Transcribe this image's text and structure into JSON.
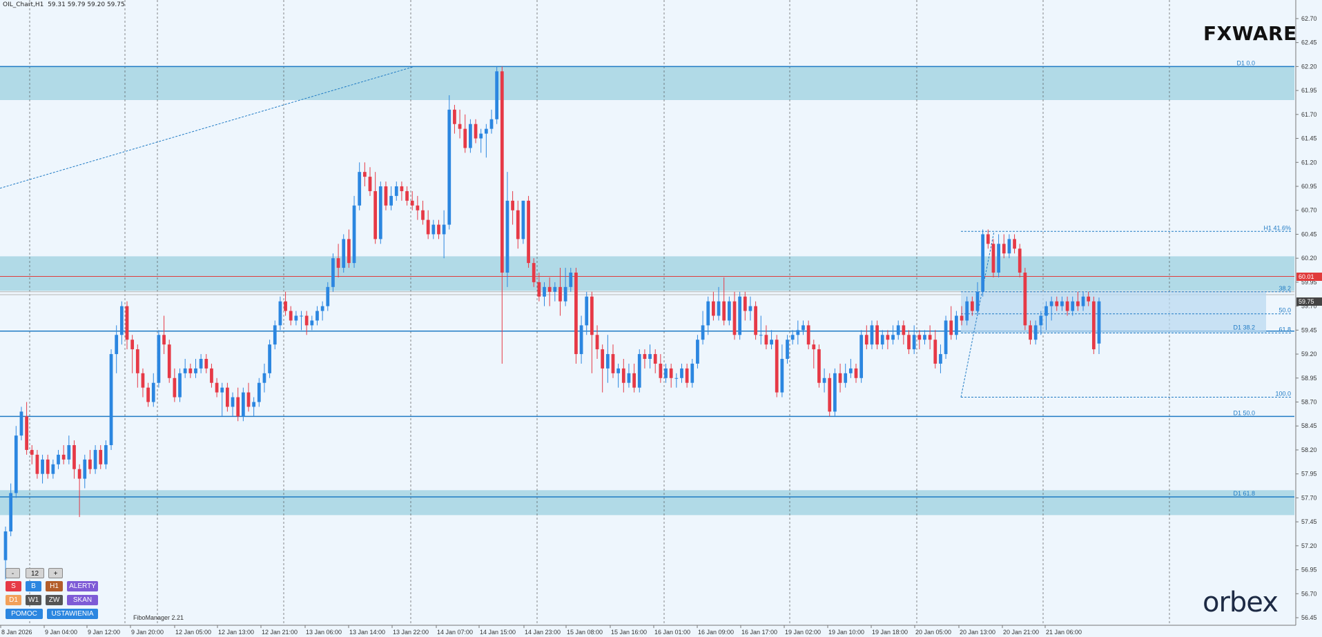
{
  "header": {
    "symbol": "OIL_Chart,H1",
    "ohlc": "59.31 59.79 59.20 59.75"
  },
  "branding": {
    "fx_logo": "FXWARE",
    "orbex_logo": "orbex"
  },
  "colors": {
    "bull": "#2b86e0",
    "bear": "#e63946",
    "zone": "#add8e6",
    "level": "#1f7ac4",
    "red_line": "#e03b3b",
    "grid": "#555555"
  },
  "chart_data": {
    "type": "candlestick",
    "ylim": [
      56.45,
      62.75
    ],
    "y_ticks": [
      "62.70",
      "62.45",
      "62.20",
      "61.95",
      "61.70",
      "61.45",
      "61.20",
      "60.95",
      "60.70",
      "60.45",
      "60.20",
      "59.95",
      "59.70",
      "59.45",
      "59.20",
      "58.95",
      "58.70",
      "58.45",
      "58.20",
      "57.95",
      "57.70",
      "57.45",
      "57.20",
      "56.95",
      "56.70",
      "56.45"
    ],
    "x_labels": [
      "8 Jan 2026",
      "9 Jan 04:00",
      "9 Jan 12:00",
      "9 Jan 20:00",
      "12 Jan 05:00",
      "12 Jan 13:00",
      "12 Jan 21:00",
      "13 Jan 06:00",
      "13 Jan 14:00",
      "13 Jan 22:00",
      "14 Jan 07:00",
      "14 Jan 15:00",
      "14 Jan 23:00",
      "15 Jan 08:00",
      "15 Jan 16:00",
      "16 Jan 01:00",
      "16 Jan 09:00",
      "16 Jan 17:00",
      "19 Jan 02:00",
      "19 Jan 10:00",
      "19 Jan 18:00",
      "20 Jan 05:00",
      "20 Jan 13:00",
      "20 Jan 21:00",
      "21 Jan 06:00"
    ],
    "candles": [
      [
        57.05,
        57.35,
        56.85,
        57.4
      ],
      [
        57.35,
        57.75,
        57.3,
        57.85
      ],
      [
        57.75,
        58.35,
        57.7,
        58.45
      ],
      [
        58.35,
        58.6,
        58.3,
        58.65
      ],
      [
        58.55,
        58.2,
        58.15,
        58.7
      ],
      [
        58.2,
        58.15,
        58.05,
        58.25
      ],
      [
        58.15,
        57.95,
        57.9,
        58.2
      ],
      [
        57.95,
        58.1,
        57.85,
        58.15
      ],
      [
        58.1,
        57.95,
        57.9,
        58.15
      ],
      [
        57.95,
        58.05,
        57.9,
        58.1
      ],
      [
        58.05,
        58.15,
        58.0,
        58.2
      ],
      [
        58.15,
        58.1,
        58.05,
        58.25
      ],
      [
        58.1,
        58.25,
        58.05,
        58.35
      ],
      [
        58.25,
        58.0,
        57.9,
        58.3
      ],
      [
        58.0,
        57.9,
        57.5,
        58.05
      ],
      [
        57.9,
        58.1,
        57.8,
        58.15
      ],
      [
        58.1,
        58.0,
        57.95,
        58.2
      ],
      [
        58.0,
        58.2,
        57.95,
        58.25
      ],
      [
        58.2,
        58.05,
        58.0,
        58.25
      ],
      [
        58.05,
        58.25,
        58.0,
        58.3
      ],
      [
        58.25,
        59.2,
        58.2,
        59.25
      ],
      [
        59.2,
        59.4,
        59.0,
        59.5
      ],
      [
        59.4,
        59.7,
        59.3,
        59.75
      ],
      [
        59.7,
        59.35,
        59.25,
        59.75
      ],
      [
        59.35,
        59.25,
        59.0,
        59.4
      ],
      [
        59.25,
        59.0,
        58.85,
        59.3
      ],
      [
        59.0,
        58.85,
        58.75,
        59.05
      ],
      [
        58.85,
        58.7,
        58.65,
        58.9
      ],
      [
        58.7,
        58.9,
        58.65,
        59.0
      ],
      [
        58.9,
        59.4,
        58.85,
        59.45
      ],
      [
        59.4,
        59.3,
        59.2,
        59.6
      ],
      [
        59.3,
        58.95,
        58.9,
        59.35
      ],
      [
        58.95,
        58.75,
        58.7,
        59.05
      ],
      [
        58.75,
        59.0,
        58.7,
        59.05
      ],
      [
        59.0,
        59.05,
        58.95,
        59.15
      ],
      [
        59.05,
        59.0,
        58.95,
        59.1
      ],
      [
        59.0,
        59.05,
        58.95,
        59.15
      ],
      [
        59.05,
        59.15,
        59.0,
        59.2
      ],
      [
        59.15,
        59.05,
        59.0,
        59.2
      ],
      [
        59.05,
        58.9,
        58.85,
        59.1
      ],
      [
        58.9,
        58.8,
        58.75,
        58.95
      ],
      [
        58.8,
        58.85,
        58.55,
        58.9
      ],
      [
        58.85,
        58.65,
        58.6,
        58.9
      ],
      [
        58.65,
        58.75,
        58.55,
        58.8
      ],
      [
        58.75,
        58.55,
        58.5,
        58.85
      ],
      [
        58.55,
        58.8,
        58.5,
        58.85
      ],
      [
        58.8,
        58.65,
        58.6,
        58.9
      ],
      [
        58.65,
        58.7,
        58.55,
        58.75
      ],
      [
        58.7,
        58.9,
        58.65,
        58.95
      ],
      [
        58.9,
        59.0,
        58.8,
        59.1
      ],
      [
        59.0,
        59.3,
        58.95,
        59.35
      ],
      [
        59.3,
        59.5,
        59.25,
        59.55
      ],
      [
        59.5,
        59.75,
        59.45,
        59.8
      ],
      [
        59.75,
        59.65,
        59.6,
        59.85
      ],
      [
        59.65,
        59.55,
        59.5,
        59.7
      ],
      [
        59.55,
        59.6,
        59.5,
        59.65
      ],
      [
        59.6,
        59.6,
        59.45,
        59.65
      ],
      [
        59.6,
        59.5,
        59.4,
        59.65
      ],
      [
        59.5,
        59.55,
        59.45,
        59.6
      ],
      [
        59.55,
        59.65,
        59.5,
        59.7
      ],
      [
        59.65,
        59.7,
        59.55,
        59.75
      ],
      [
        59.7,
        59.9,
        59.65,
        59.95
      ],
      [
        59.9,
        60.2,
        59.85,
        60.25
      ],
      [
        60.2,
        60.1,
        60.0,
        60.35
      ],
      [
        60.1,
        60.4,
        60.05,
        60.45
      ],
      [
        60.4,
        60.15,
        60.1,
        60.5
      ],
      [
        60.15,
        60.75,
        60.1,
        60.85
      ],
      [
        60.75,
        61.1,
        60.7,
        61.2
      ],
      [
        61.1,
        61.05,
        60.95,
        61.2
      ],
      [
        61.05,
        60.9,
        60.85,
        61.15
      ],
      [
        60.9,
        60.4,
        60.35,
        61.1
      ],
      [
        60.4,
        60.95,
        60.35,
        61.0
      ],
      [
        60.95,
        60.75,
        60.7,
        61.0
      ],
      [
        60.75,
        60.85,
        60.7,
        60.95
      ],
      [
        60.85,
        60.95,
        60.8,
        61.0
      ],
      [
        60.95,
        60.9,
        60.8,
        61.0
      ],
      [
        60.9,
        60.8,
        60.75,
        60.95
      ],
      [
        60.8,
        60.75,
        60.7,
        60.9
      ],
      [
        60.75,
        60.7,
        60.6,
        60.85
      ],
      [
        60.7,
        60.6,
        60.55,
        60.8
      ],
      [
        60.6,
        60.45,
        60.4,
        60.7
      ],
      [
        60.45,
        60.55,
        60.4,
        60.6
      ],
      [
        60.55,
        60.45,
        60.4,
        60.6
      ],
      [
        60.45,
        60.55,
        60.2,
        60.7
      ],
      [
        60.55,
        61.75,
        60.5,
        61.9
      ],
      [
        61.75,
        61.6,
        61.5,
        61.8
      ],
      [
        61.6,
        61.55,
        61.45,
        61.75
      ],
      [
        61.55,
        61.35,
        61.3,
        61.7
      ],
      [
        61.35,
        61.6,
        61.3,
        61.65
      ],
      [
        61.6,
        61.45,
        61.4,
        61.65
      ],
      [
        61.45,
        61.5,
        61.3,
        61.55
      ],
      [
        61.5,
        61.55,
        61.25,
        61.6
      ],
      [
        61.55,
        61.65,
        61.5,
        61.75
      ],
      [
        61.65,
        62.15,
        61.6,
        62.2
      ],
      [
        62.15,
        60.05,
        59.1,
        62.2
      ],
      [
        60.05,
        60.8,
        59.9,
        61.1
      ],
      [
        60.8,
        60.7,
        60.55,
        60.9
      ],
      [
        60.7,
        60.4,
        60.3,
        60.8
      ],
      [
        60.4,
        60.8,
        60.35,
        60.8
      ],
      [
        60.8,
        60.15,
        60.1,
        60.85
      ],
      [
        60.15,
        59.95,
        59.9,
        60.2
      ],
      [
        59.95,
        59.8,
        59.75,
        60.05
      ],
      [
        59.8,
        59.9,
        59.7,
        59.95
      ],
      [
        59.9,
        59.85,
        59.7,
        60.0
      ],
      [
        59.85,
        59.9,
        59.75,
        59.95
      ],
      [
        59.9,
        59.75,
        59.6,
        60.1
      ],
      [
        59.75,
        59.9,
        59.7,
        60.1
      ],
      [
        59.9,
        60.05,
        59.85,
        60.1
      ],
      [
        60.05,
        59.2,
        59.1,
        60.1
      ],
      [
        59.2,
        59.5,
        59.1,
        59.6
      ],
      [
        59.5,
        59.8,
        59.4,
        59.85
      ],
      [
        59.8,
        59.4,
        59.0,
        59.85
      ],
      [
        59.4,
        59.25,
        59.15,
        59.5
      ],
      [
        59.25,
        59.05,
        58.8,
        59.3
      ],
      [
        59.05,
        59.2,
        58.9,
        59.4
      ],
      [
        59.2,
        59.0,
        58.95,
        59.3
      ],
      [
        59.0,
        59.05,
        58.85,
        59.1
      ],
      [
        59.05,
        58.9,
        58.8,
        59.15
      ],
      [
        58.9,
        59.0,
        58.85,
        59.1
      ],
      [
        59.0,
        58.85,
        58.8,
        59.1
      ],
      [
        58.85,
        59.2,
        58.8,
        59.25
      ],
      [
        59.2,
        59.15,
        59.05,
        59.25
      ],
      [
        59.15,
        59.2,
        59.05,
        59.3
      ],
      [
        59.2,
        59.1,
        59.0,
        59.25
      ],
      [
        59.1,
        58.95,
        58.9,
        59.2
      ],
      [
        58.95,
        59.05,
        58.9,
        59.1
      ],
      [
        59.05,
        58.95,
        58.85,
        59.1
      ],
      [
        58.95,
        58.95,
        58.85,
        59.0
      ],
      [
        58.95,
        59.05,
        58.9,
        59.1
      ],
      [
        59.05,
        58.9,
        58.85,
        59.1
      ],
      [
        58.9,
        59.1,
        58.85,
        59.15
      ],
      [
        59.1,
        59.35,
        59.05,
        59.4
      ],
      [
        59.35,
        59.5,
        59.3,
        59.65
      ],
      [
        59.5,
        59.75,
        59.4,
        59.8
      ],
      [
        59.75,
        59.6,
        59.55,
        59.85
      ],
      [
        59.6,
        59.75,
        59.55,
        59.9
      ],
      [
        59.75,
        59.55,
        59.5,
        60.0
      ],
      [
        59.55,
        59.75,
        59.5,
        59.8
      ],
      [
        59.75,
        59.4,
        59.35,
        59.85
      ],
      [
        59.4,
        59.8,
        59.35,
        59.85
      ],
      [
        59.8,
        59.65,
        59.55,
        59.85
      ],
      [
        59.65,
        59.7,
        59.55,
        59.8
      ],
      [
        59.7,
        59.4,
        59.35,
        59.75
      ],
      [
        59.4,
        59.4,
        59.3,
        59.6
      ],
      [
        59.4,
        59.3,
        59.25,
        59.5
      ],
      [
        59.3,
        59.35,
        59.25,
        59.45
      ],
      [
        59.35,
        58.8,
        58.75,
        59.4
      ],
      [
        58.8,
        59.15,
        58.75,
        59.3
      ],
      [
        59.15,
        59.35,
        59.1,
        59.4
      ],
      [
        59.35,
        59.4,
        59.3,
        59.45
      ],
      [
        59.4,
        59.45,
        59.3,
        59.55
      ],
      [
        59.45,
        59.5,
        59.4,
        59.55
      ],
      [
        59.5,
        59.3,
        59.25,
        59.55
      ],
      [
        59.3,
        59.25,
        59.05,
        59.35
      ],
      [
        59.25,
        58.9,
        58.85,
        59.3
      ],
      [
        58.9,
        58.95,
        58.8,
        59.05
      ],
      [
        58.95,
        58.6,
        58.55,
        59.0
      ],
      [
        58.6,
        59.0,
        58.55,
        59.05
      ],
      [
        59.0,
        58.9,
        58.8,
        59.1
      ],
      [
        58.9,
        59.0,
        58.85,
        59.1
      ],
      [
        59.0,
        59.05,
        58.95,
        59.15
      ],
      [
        59.05,
        58.95,
        58.9,
        59.1
      ],
      [
        58.95,
        59.4,
        58.9,
        59.45
      ],
      [
        59.4,
        59.3,
        59.25,
        59.5
      ],
      [
        59.3,
        59.5,
        59.25,
        59.55
      ],
      [
        59.5,
        59.3,
        59.25,
        59.55
      ],
      [
        59.3,
        59.4,
        59.25,
        59.45
      ],
      [
        59.4,
        59.35,
        59.25,
        59.45
      ],
      [
        59.35,
        59.4,
        59.3,
        59.5
      ],
      [
        59.4,
        59.5,
        59.35,
        59.55
      ],
      [
        59.5,
        59.4,
        59.3,
        59.55
      ],
      [
        59.4,
        59.25,
        59.2,
        59.45
      ],
      [
        59.25,
        59.4,
        59.2,
        59.5
      ],
      [
        59.4,
        59.35,
        59.25,
        59.45
      ],
      [
        59.35,
        59.4,
        59.3,
        59.45
      ],
      [
        59.4,
        59.35,
        59.25,
        59.5
      ],
      [
        59.35,
        59.1,
        59.05,
        59.45
      ],
      [
        59.1,
        59.2,
        59.0,
        59.3
      ],
      [
        59.2,
        59.55,
        59.15,
        59.6
      ],
      [
        59.55,
        59.4,
        59.35,
        59.7
      ],
      [
        59.4,
        59.6,
        59.35,
        59.65
      ],
      [
        59.6,
        59.55,
        59.5,
        59.7
      ],
      [
        59.55,
        59.75,
        59.5,
        59.8
      ],
      [
        59.75,
        59.65,
        59.6,
        59.8
      ],
      [
        59.65,
        59.85,
        59.6,
        59.95
      ],
      [
        59.85,
        60.45,
        59.8,
        60.5
      ],
      [
        60.45,
        60.35,
        60.3,
        60.5
      ],
      [
        60.35,
        60.05,
        60.0,
        60.4
      ],
      [
        60.05,
        60.35,
        60.0,
        60.45
      ],
      [
        60.35,
        60.25,
        60.2,
        60.45
      ],
      [
        60.25,
        60.4,
        60.2,
        60.45
      ],
      [
        60.4,
        60.3,
        60.25,
        60.45
      ],
      [
        60.3,
        60.05,
        60.0,
        60.35
      ],
      [
        60.05,
        59.5,
        59.45,
        60.1
      ],
      [
        59.5,
        59.35,
        59.3,
        59.55
      ],
      [
        59.35,
        59.5,
        59.3,
        59.55
      ],
      [
        59.5,
        59.6,
        59.4,
        59.65
      ],
      [
        59.6,
        59.7,
        59.45,
        59.75
      ],
      [
        59.7,
        59.75,
        59.55,
        59.8
      ],
      [
        59.75,
        59.7,
        59.65,
        59.8
      ],
      [
        59.7,
        59.75,
        59.65,
        59.8
      ],
      [
        59.75,
        59.65,
        59.6,
        59.8
      ],
      [
        59.65,
        59.75,
        59.6,
        59.8
      ],
      [
        59.75,
        59.7,
        59.65,
        59.85
      ],
      [
        59.7,
        59.8,
        59.65,
        59.85
      ],
      [
        59.8,
        59.75,
        59.7,
        59.85
      ],
      [
        59.75,
        59.25,
        59.2,
        59.8
      ],
      [
        59.31,
        59.75,
        59.2,
        59.79
      ]
    ],
    "levels": {
      "zones": [
        [
          61.85,
          62.2
        ],
        [
          59.86,
          60.22
        ],
        [
          57.52,
          57.78
        ]
      ],
      "lines": [
        62.2,
        59.44,
        58.55,
        57.71
      ],
      "red_line": 60.01,
      "grey_lines": [
        59.85,
        59.82
      ]
    },
    "level_labels": [
      "D1 0.0",
      "D1 38.2",
      "D1 50.0",
      "D1 61.8"
    ],
    "fib_h1": {
      "labels": [
        "H1 41.6%",
        "38.2",
        "50.0",
        "61.8",
        "100.0"
      ],
      "values": [
        60.48,
        59.85,
        59.62,
        59.42,
        58.75
      ]
    },
    "price_labels": {
      "red": "60.01",
      "current": "59.75"
    }
  },
  "controls": {
    "minus": "-",
    "count": "12",
    "plus": "+",
    "s": "S",
    "b": "B",
    "h1": "H1",
    "alerty": "ALERTY",
    "d1": "D1",
    "w1": "W1",
    "zw": "ZW",
    "skan": "SKAN",
    "pomoc": "POMOC",
    "ustawienia": "USTAWIENIA"
  },
  "fibomanager": "FiboManager 2.21"
}
